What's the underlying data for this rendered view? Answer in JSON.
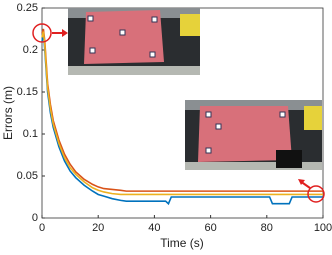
{
  "chart_data": {
    "type": "line",
    "x_label": "Time (s)",
    "y_label": "Errors (m)",
    "x": [
      0,
      0.5,
      1,
      2,
      3,
      4,
      6,
      8,
      10,
      12,
      15,
      18,
      20,
      22,
      25,
      28,
      30,
      35,
      40,
      44,
      45,
      46,
      50,
      60,
      70,
      80,
      81,
      82,
      88,
      89,
      90,
      95,
      100
    ],
    "series": [
      {
        "color": "#0072bd",
        "values": [
          0.21,
          0.22,
          0.2,
          0.15,
          0.125,
          0.108,
          0.085,
          0.068,
          0.056,
          0.048,
          0.039,
          0.032,
          0.028,
          0.026,
          0.023,
          0.021,
          0.02,
          0.02,
          0.02,
          0.02,
          0.017,
          0.025,
          0.025,
          0.025,
          0.025,
          0.025,
          0.025,
          0.017,
          0.017,
          0.025,
          0.025,
          0.025,
          0.025
        ]
      },
      {
        "color": "#d95319",
        "values": [
          0.22,
          0.225,
          0.21,
          0.16,
          0.135,
          0.116,
          0.093,
          0.076,
          0.064,
          0.055,
          0.046,
          0.04,
          0.037,
          0.035,
          0.034,
          0.033,
          0.032,
          0.032,
          0.032,
          0.032,
          0.032,
          0.032,
          0.032,
          0.032,
          0.032,
          0.032,
          0.032,
          0.032,
          0.032,
          0.032,
          0.032,
          0.032,
          0.032
        ]
      },
      {
        "color": "#edb120",
        "values": [
          0.215,
          0.222,
          0.205,
          0.155,
          0.13,
          0.112,
          0.089,
          0.072,
          0.06,
          0.052,
          0.043,
          0.036,
          0.033,
          0.031,
          0.029,
          0.028,
          0.028,
          0.028,
          0.028,
          0.028,
          0.028,
          0.028,
          0.028,
          0.028,
          0.028,
          0.028,
          0.028,
          0.028,
          0.028,
          0.028,
          0.028,
          0.028,
          0.028
        ]
      }
    ],
    "xlim": [
      0,
      100
    ],
    "xticks": [
      0,
      20,
      40,
      60,
      80,
      100
    ],
    "ylim": [
      0,
      0.25
    ],
    "yticks": [
      0,
      0.05,
      0.1,
      0.15,
      0.2,
      0.25
    ]
  }
}
